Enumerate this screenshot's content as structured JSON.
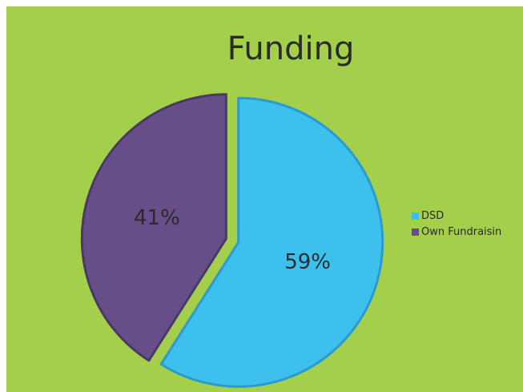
{
  "chart_data": {
    "type": "pie",
    "title": "Funding",
    "categories": [
      "DSD",
      "Own Fundraisin"
    ],
    "values": [
      59,
      41
    ],
    "data_labels": [
      "59%",
      "41%"
    ],
    "colors": [
      "#3ec0ef",
      "#664f88"
    ],
    "legend_position": "right",
    "background_color": "#a3cf4a"
  }
}
